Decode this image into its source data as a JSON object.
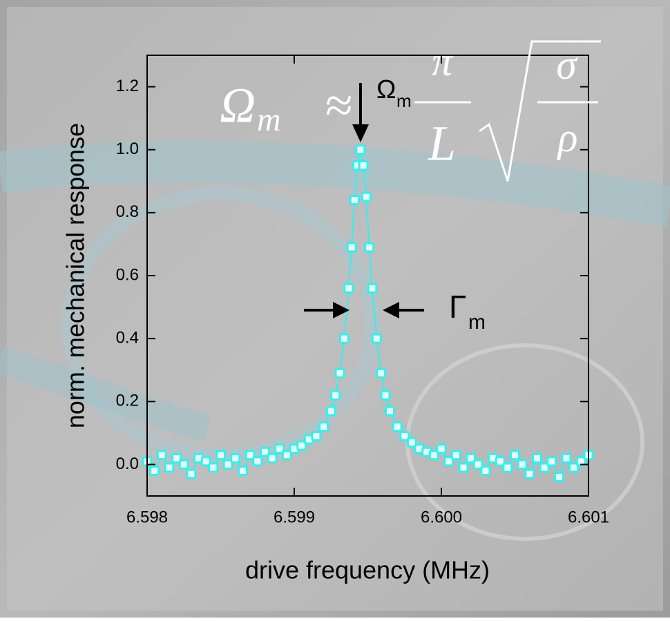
{
  "chart_data": {
    "type": "scatter",
    "x_label": "drive frequency (MHz)",
    "y_label": "norm. mechanical response",
    "x": [
      6.598,
      6.59805,
      6.5981,
      6.59815,
      6.5982,
      6.59825,
      6.5983,
      6.59835,
      6.5984,
      6.59845,
      6.5985,
      6.59855,
      6.5986,
      6.59865,
      6.5987,
      6.59875,
      6.5988,
      6.59885,
      6.5989,
      6.59895,
      6.599,
      6.59905,
      6.5991,
      6.59915,
      6.5992,
      6.59925,
      6.59928,
      6.59931,
      6.59934,
      6.59937,
      6.59939,
      6.59941,
      6.59943,
      6.59945,
      6.59947,
      6.59949,
      6.59951,
      6.59953,
      6.59956,
      6.59959,
      6.59962,
      6.59965,
      6.5997,
      6.59975,
      6.5998,
      6.59985,
      6.5999,
      6.59995,
      6.6,
      6.60005,
      6.6001,
      6.60015,
      6.6002,
      6.60025,
      6.6003,
      6.60035,
      6.6004,
      6.60045,
      6.6005,
      6.60055,
      6.6006,
      6.60065,
      6.6007,
      6.60075,
      6.6008,
      6.60085,
      6.6009,
      6.60095,
      6.601
    ],
    "values": [
      0.01,
      -0.02,
      0.03,
      -0.01,
      0.02,
      0.0,
      -0.03,
      0.02,
      0.01,
      -0.01,
      0.03,
      0.0,
      0.02,
      -0.02,
      0.03,
      0.01,
      0.04,
      0.02,
      0.05,
      0.03,
      0.05,
      0.06,
      0.08,
      0.09,
      0.12,
      0.17,
      0.22,
      0.29,
      0.4,
      0.56,
      0.69,
      0.84,
      0.95,
      1.0,
      0.95,
      0.85,
      0.69,
      0.56,
      0.4,
      0.29,
      0.22,
      0.17,
      0.12,
      0.09,
      0.07,
      0.05,
      0.04,
      0.03,
      0.05,
      0.01,
      0.03,
      -0.01,
      0.02,
      0.0,
      -0.02,
      0.02,
      0.01,
      -0.01,
      0.03,
      0.0,
      -0.03,
      0.02,
      -0.01,
      0.01,
      -0.04,
      0.02,
      -0.01,
      0.01,
      0.03
    ],
    "color": "#2ef2f0",
    "xlim": [
      6.598,
      6.601
    ],
    "ylim": [
      -0.1,
      1.3
    ],
    "xticks": [
      6.598,
      6.599,
      {
        "value": 6.6,
        "label": "6.600"
      },
      6.601
    ],
    "yticks": [
      {
        "value": 0,
        "label": "0.0"
      },
      0.2,
      0.4,
      0.6,
      0.8,
      {
        "value": 1,
        "label": "1.0"
      },
      1.2
    ],
    "peak_label": {
      "symbol": "Ω",
      "sub": "m"
    },
    "width_label": {
      "symbol": "Γ",
      "sub": "m"
    },
    "formula": {
      "lhs": "Ω",
      "lhs_sub": "m",
      "relation": "≈",
      "num": "π",
      "den": "L",
      "root_num": "σ",
      "root_den": "ρ"
    }
  }
}
